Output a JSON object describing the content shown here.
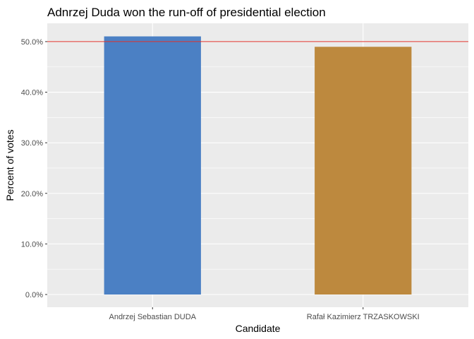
{
  "chart_data": {
    "type": "bar",
    "title": "Adnrzej Duda won the run-off of presidential election",
    "xlabel": "Candidate",
    "ylabel": "Percent of votes",
    "categories": [
      "Andrzej Sebastian DUDA",
      "Rafał Kazimierz TRZASKOWSKI"
    ],
    "values": [
      51.03,
      48.97
    ],
    "bar_colors": [
      "#4b80c4",
      "#bd893e"
    ],
    "ylim": [
      0,
      52.5
    ],
    "yticks": [
      0,
      10,
      20,
      30,
      40,
      50
    ],
    "ytick_labels": [
      "0.0%",
      "10.0%",
      "20.0%",
      "30.0%",
      "40.0%",
      "50.0%"
    ],
    "reference_line": {
      "value": 50,
      "color": "#e0312b"
    },
    "panel_background": "#ebebeb",
    "grid_color": "#ffffff",
    "grid": true,
    "legend": "none"
  }
}
